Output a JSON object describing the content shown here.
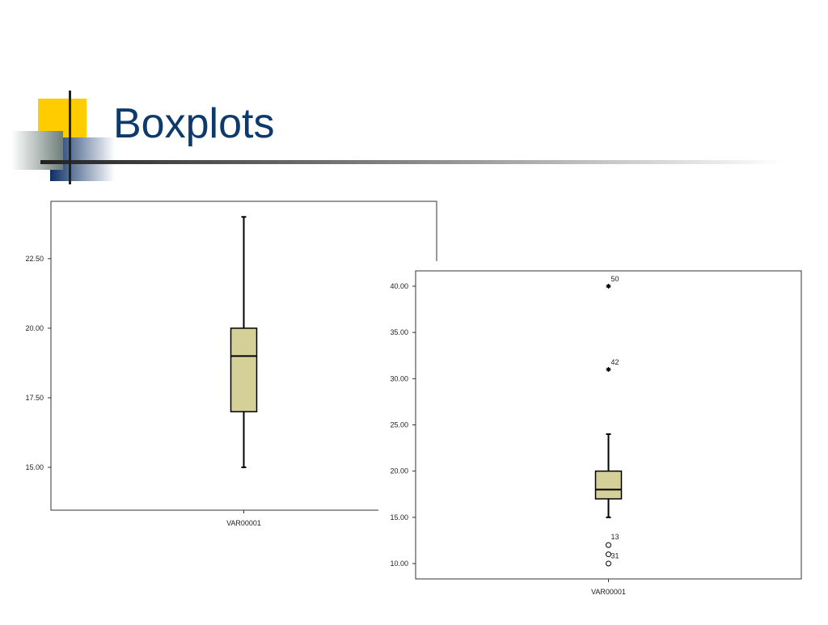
{
  "slide": {
    "title": "Boxplots"
  },
  "chart_data": [
    {
      "type": "boxplot",
      "categories": [
        "VAR00001"
      ],
      "color": "#d4d098",
      "boxes": [
        {
          "whisker_low": 15,
          "q1": 17,
          "median": 19,
          "q3": 20,
          "whisker_high": 24
        }
      ],
      "ylim": [
        13.46,
        24.56
      ],
      "yticks": [
        {
          "value": 15,
          "label": "15.00"
        },
        {
          "value": 17.5,
          "label": "17.50"
        },
        {
          "value": 20,
          "label": "20.00"
        },
        {
          "value": 22.5,
          "label": "22.50"
        }
      ]
    },
    {
      "type": "boxplot",
      "categories": [
        "VAR00001"
      ],
      "color": "#d4d098",
      "boxes": [
        {
          "whisker_low": 15,
          "q1": 17,
          "median": 18,
          "q3": 20,
          "whisker_high": 24
        }
      ],
      "outliers": {
        "values": [
          40,
          31,
          12,
          11,
          10
        ],
        "labels": [
          "50",
          "42",
          "13",
          "31",
          null
        ],
        "markers": [
          "star",
          "star",
          "circle",
          "circle",
          "circle"
        ]
      },
      "ylim": [
        8.34,
        41.66
      ],
      "yticks": [
        {
          "value": 10,
          "label": "10.00"
        },
        {
          "value": 15,
          "label": "15.00"
        },
        {
          "value": 20,
          "label": "20.00"
        },
        {
          "value": 25,
          "label": "25.00"
        },
        {
          "value": 30,
          "label": "30.00"
        },
        {
          "value": 35,
          "label": "35.00"
        },
        {
          "value": 40,
          "label": "40.00"
        }
      ]
    }
  ]
}
